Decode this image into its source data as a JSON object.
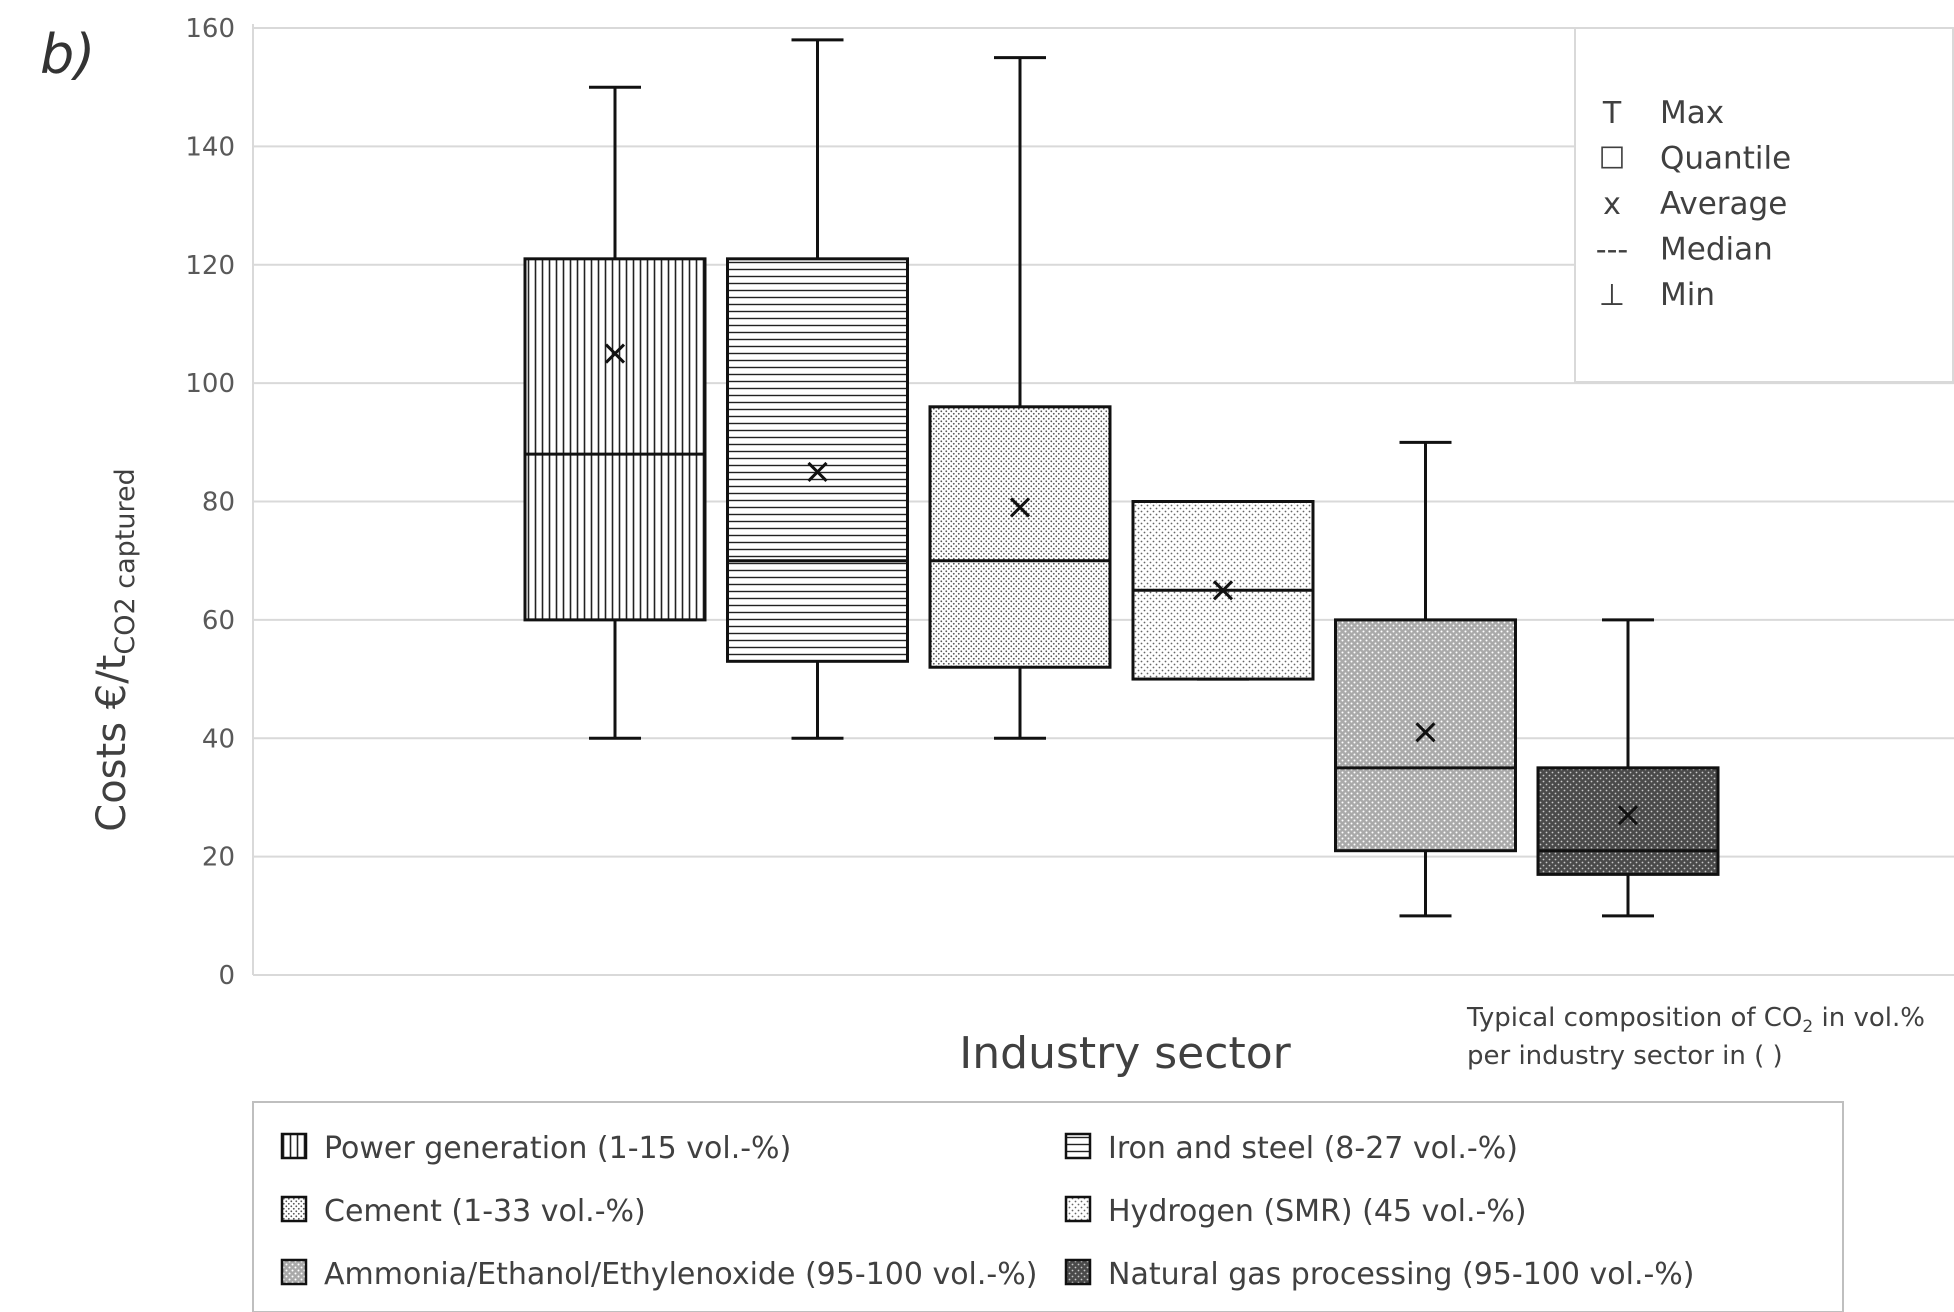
{
  "panel_label": "b)",
  "chart_data": {
    "type": "box",
    "ylabel_main": "Costs €/t",
    "ylabel_sub": "CO2 captured",
    "xlabel": "Industry sector",
    "ylim": [
      0,
      160
    ],
    "yticks": [
      0,
      20,
      40,
      60,
      80,
      100,
      120,
      140,
      160
    ],
    "grid": true,
    "series": [
      {
        "name": "Power generation (1-15 vol.-%)",
        "min": 40,
        "q1": 60,
        "median": 88,
        "q3": 121,
        "max": 150,
        "mean": 105,
        "pattern": "vlines"
      },
      {
        "name": "Iron and steel (8-27 vol.-%)",
        "min": 40,
        "q1": 53,
        "median": 70,
        "q3": 121,
        "max": 158,
        "mean": 85,
        "pattern": "hlines"
      },
      {
        "name": "Cement (1-33 vol.-%)",
        "min": 40,
        "q1": 52,
        "median": 70,
        "q3": 96,
        "max": 155,
        "mean": 79,
        "pattern": "dots-fine"
      },
      {
        "name": "Hydrogen (SMR) (45 vol.-%)",
        "min": 50,
        "q1": 50,
        "median": 65,
        "q3": 80,
        "max": 80,
        "mean": 65,
        "pattern": "dots-light"
      },
      {
        "name": "Ammonia/Ethanol/Ethylenoxide (95-100 vol.-%)",
        "min": 10,
        "q1": 21,
        "median": 35,
        "q3": 60,
        "max": 90,
        "mean": 41,
        "pattern": "grey-dotted"
      },
      {
        "name": "Natural gas processing (95-100 vol.-%)",
        "min": 10,
        "q1": 17,
        "median": 21,
        "q3": 35,
        "max": 60,
        "mean": 27,
        "pattern": "dark-dotted"
      }
    ],
    "key": [
      {
        "symbol": "T",
        "label": "Max"
      },
      {
        "symbol": "☐",
        "label": "Quantile"
      },
      {
        "symbol": "x",
        "label": "Average"
      },
      {
        "symbol": "---",
        "label": "Median"
      },
      {
        "symbol": "⊥",
        "label": "Min"
      }
    ],
    "note_line1": "Typical composition of CO",
    "note_sub": "2",
    "note_line2_suffix": " in vol.%",
    "note_line3": "per industry sector in ( )"
  }
}
